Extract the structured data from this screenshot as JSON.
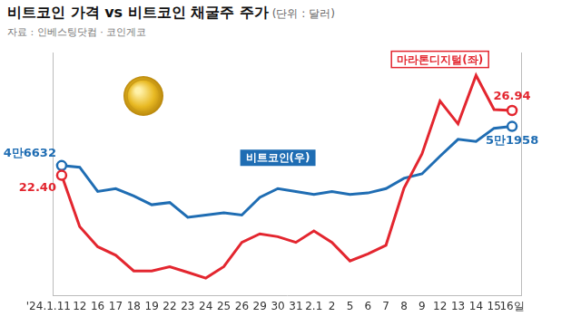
{
  "chart_data": {
    "type": "line",
    "title": "비트코인 가격 vs 비트코인 채굴주 주가",
    "subtitle": "(단위 : 달러)",
    "source": "자료 : 인베스팅닷컴 · 코인게코",
    "categories": [
      "'24.1.11",
      "12",
      "16",
      "17",
      "18",
      "19",
      "22",
      "23",
      "24",
      "25",
      "26",
      "29",
      "30",
      "31",
      "2.1",
      "2",
      "5",
      "6",
      "7",
      "8",
      "9",
      "12",
      "13",
      "14",
      "15",
      "16일"
    ],
    "series": [
      {
        "name": "마라톤디지털(좌)",
        "color": "#e3262f",
        "marker": "circle",
        "values": [
          22.4,
          18.8,
          17.4,
          16.8,
          15.7,
          15.7,
          16.0,
          15.6,
          15.2,
          16.0,
          17.7,
          18.3,
          18.1,
          17.7,
          18.5,
          17.7,
          16.4,
          16.9,
          17.5,
          21.5,
          23.9,
          27.6,
          26.0,
          29.4,
          27.0,
          26.94
        ],
        "value_labels": [
          "22.40",
          null,
          null,
          null,
          null,
          null,
          null,
          null,
          null,
          null,
          null,
          null,
          null,
          null,
          null,
          null,
          null,
          null,
          null,
          null,
          null,
          null,
          null,
          null,
          null,
          "26.94"
        ]
      },
      {
        "name": "비트코인(우)",
        "color": "#1f6db3",
        "marker": "circle",
        "axis": "y2",
        "values": [
          46632,
          46400,
          43100,
          43500,
          42500,
          41300,
          41600,
          39600,
          39900,
          40200,
          39900,
          42300,
          43500,
          43100,
          42700,
          43100,
          42700,
          42900,
          43500,
          44900,
          45500,
          47900,
          50200,
          49900,
          51700,
          51958
        ],
        "value_labels": [
          "4만6632",
          null,
          null,
          null,
          null,
          null,
          null,
          null,
          null,
          null,
          null,
          null,
          null,
          null,
          null,
          null,
          null,
          null,
          null,
          null,
          null,
          null,
          null,
          null,
          null,
          "5만1958"
        ]
      }
    ],
    "ylim": [
      14,
      31
    ],
    "y2lim": [
      29000,
      62000
    ],
    "tick_labels": "x",
    "grid": false
  }
}
